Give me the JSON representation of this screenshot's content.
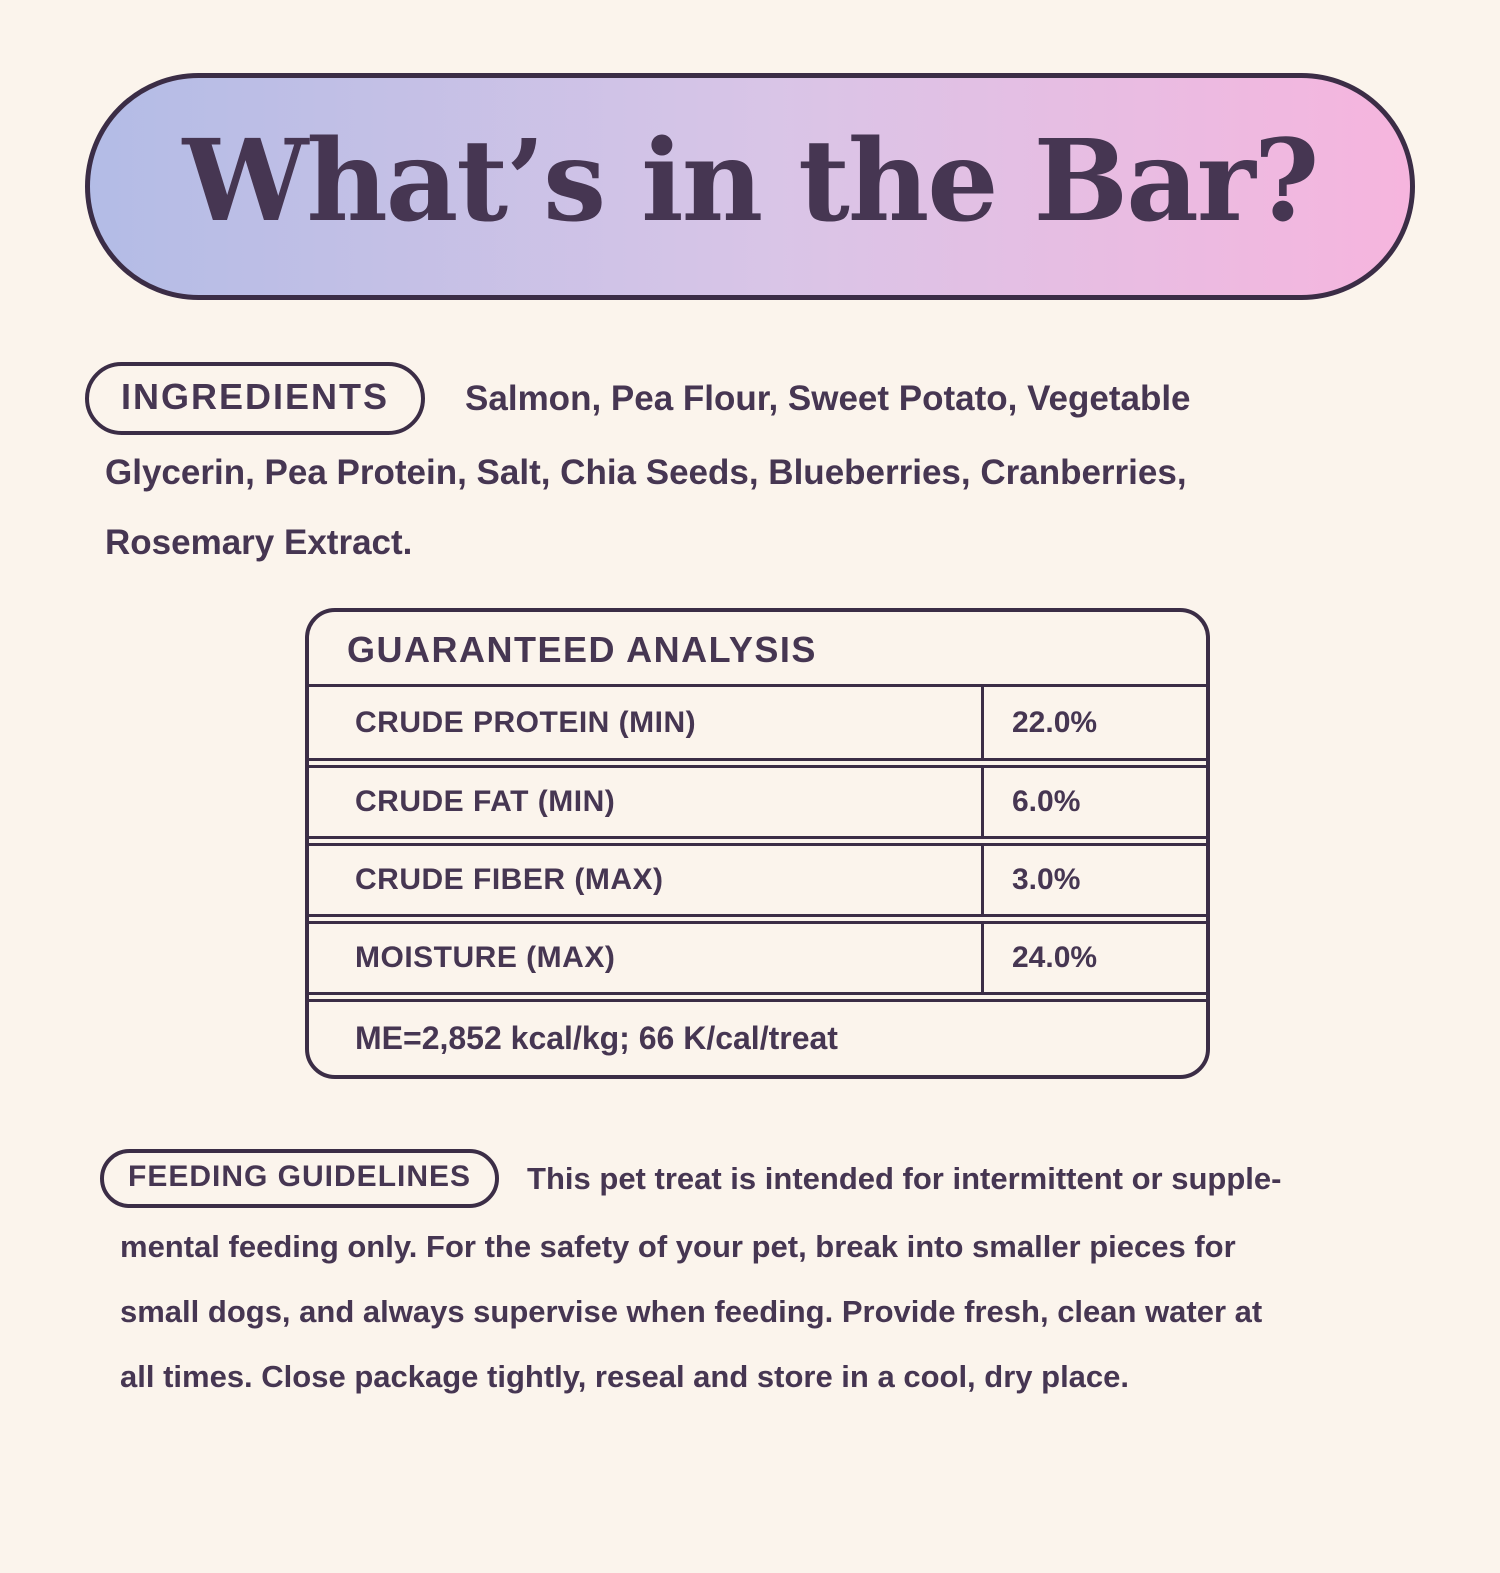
{
  "theme": {
    "background": "#fbf4ec",
    "ink": "#463652",
    "line": "#3b2d46",
    "gradient_left": "#b3bce6",
    "gradient_mid": "#d9c5e7",
    "gradient_right": "#f6b5de"
  },
  "header": {
    "title": "What’s in the Bar?"
  },
  "ingredients": {
    "label": "INGREDIENTS",
    "lines": [
      "Salmon, Pea Flour, Sweet Potato, Vegetable",
      "Glycerin, Pea Protein, Salt, Chia Seeds, Blueberries, Cranberries,",
      "Rosemary Extract."
    ]
  },
  "guaranteed_analysis": {
    "title": "GUARANTEED ANALYSIS",
    "rows": [
      {
        "label": "CRUDE PROTEIN (MIN)",
        "value": "22.0%"
      },
      {
        "label": "CRUDE FAT (MIN)",
        "value": "6.0%"
      },
      {
        "label": "CRUDE FIBER (MAX)",
        "value": "3.0%"
      },
      {
        "label": "MOISTURE (MAX)",
        "value": "24.0%"
      }
    ],
    "footnote": "ME=2,852 kcal/kg; 66 K/cal/treat"
  },
  "feeding_guidelines": {
    "label": "FEEDING GUIDELINES",
    "lines": [
      "This pet treat is intended for intermittent or supple-",
      "mental feeding only. For the safety of your pet, break into smaller pieces for",
      "small dogs, and always supervise when feeding. Provide fresh, clean water at",
      "all times. Close package tightly, reseal and store in a cool, dry place."
    ]
  }
}
